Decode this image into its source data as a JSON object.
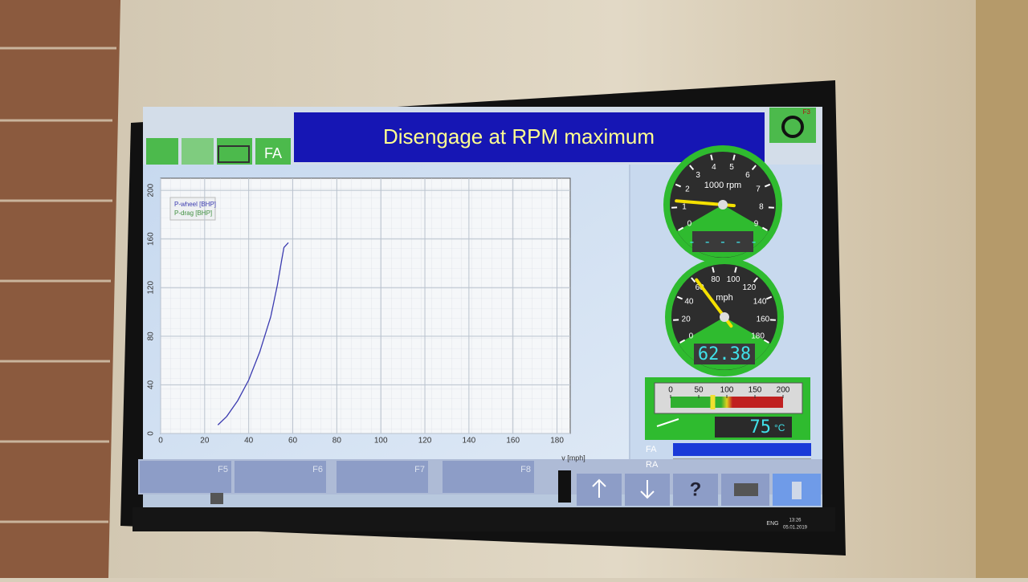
{
  "window": {
    "title": "Disengage at RPM maximum",
    "toolbar_label": "FA",
    "corner_key": "F3"
  },
  "chart_data": {
    "type": "line",
    "x": [
      26,
      30,
      35,
      40,
      45,
      50,
      53,
      55,
      56,
      58
    ],
    "series": [
      {
        "name": "P-wheel [BHP]",
        "color": "#3b3bb0",
        "values": [
          7,
          14,
          27,
          44,
          67,
          96,
          122,
          143,
          153,
          157
        ]
      },
      {
        "name": "P-drag [BHP]",
        "color": "#3f8f3f",
        "values": [
          null,
          null,
          null,
          null,
          null,
          null,
          null,
          null,
          null,
          null
        ]
      }
    ],
    "xlabel": "v [mph]",
    "xlim": [
      0,
      186
    ],
    "xticks": [
      0,
      20,
      40,
      60,
      80,
      100,
      120,
      140,
      160,
      180
    ],
    "ylim": [
      0,
      210
    ],
    "yticks": [
      0,
      40,
      80,
      120,
      160,
      200
    ],
    "grid": true
  },
  "gauges": [
    {
      "unit": "1000 rpm",
      "ticks": [
        0,
        1,
        2,
        3,
        4,
        5,
        6,
        7,
        8,
        9
      ],
      "needle": 1.3,
      "display": "- - - - -"
    },
    {
      "unit": "mph",
      "ticks": [
        0,
        20,
        40,
        60,
        80,
        100,
        120,
        140,
        160,
        180
      ],
      "needle": 62.38
    }
  ],
  "temperature": {
    "ticks": [
      0,
      50,
      100,
      150,
      200
    ],
    "value": 75,
    "unit": "°C"
  },
  "status_rows": [
    "FA",
    "RA"
  ],
  "function_keys": [
    "F5",
    "F6",
    "F7",
    "F8"
  ],
  "help_key": "?",
  "taskbar": {
    "language": "ENG",
    "time": "13:26",
    "date": "05.01.2019"
  }
}
